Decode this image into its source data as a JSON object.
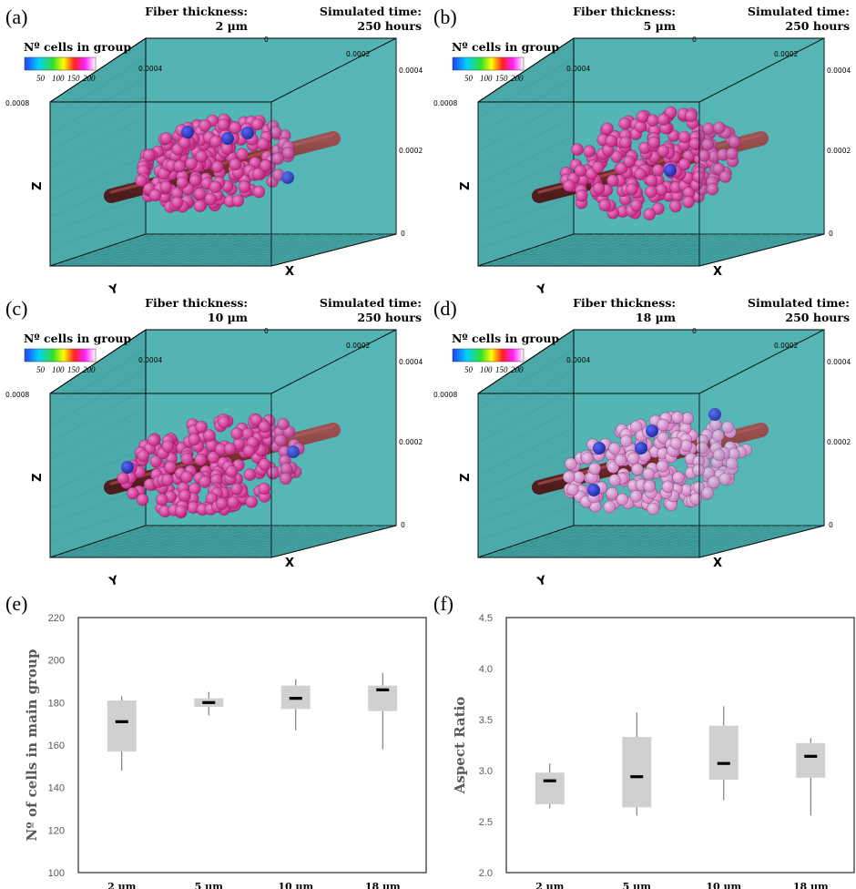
{
  "colors": {
    "box_face": "#5ebdbd",
    "fiber": "#7a1010",
    "cells_dense": "#d4107a",
    "cells_light": "#e070c0",
    "outlier": "#1a1aa0",
    "box_fill": "#d0d0d0",
    "median": "#000000"
  },
  "legend": {
    "title": "Nº cells in group",
    "ticks": [
      "50",
      "100",
      "150",
      "200"
    ]
  },
  "axes": {
    "x": "X",
    "y": "Y",
    "z": "Z",
    "v0008": "0.0008",
    "v0004": "0.0004",
    "v0002": "0.0002",
    "v0": "0"
  },
  "panels3d": [
    {
      "letter": "(a)",
      "fiber_label": "Fiber thickness:",
      "fiber_value": "2 µm",
      "time_label": "Simulated time:",
      "time_value": "250 hours"
    },
    {
      "letter": "(b)",
      "fiber_label": "Fiber thickness:",
      "fiber_value": "5 µm",
      "time_label": "Simulated time:",
      "time_value": "250 hours"
    },
    {
      "letter": "(c)",
      "fiber_label": "Fiber thickness:",
      "fiber_value": "10 µm",
      "time_label": "Simulated time:",
      "time_value": "250 hours"
    },
    {
      "letter": "(d)",
      "fiber_label": "Fiber thickness:",
      "fiber_value": "18 µm",
      "time_label": "Simulated time:",
      "time_value": "250 hours"
    }
  ],
  "chart_data": [
    {
      "letter": "(e)",
      "type": "box",
      "categories": [
        "2 µm",
        "5 µm",
        "10 µm",
        "18 µm"
      ],
      "ylabel": "Nº of cells in main group",
      "ylim": [
        100,
        220
      ],
      "yticks": [
        100,
        120,
        140,
        160,
        180,
        200,
        220
      ],
      "boxes": [
        {
          "min": 148,
          "q1": 157,
          "median": 171,
          "q3": 181,
          "max": 183
        },
        {
          "min": 174,
          "q1": 178,
          "median": 180,
          "q3": 182,
          "max": 185
        },
        {
          "min": 167,
          "q1": 177,
          "median": 182,
          "q3": 188,
          "max": 191
        },
        {
          "min": 158,
          "q1": 176,
          "median": 186,
          "q3": 188,
          "max": 194
        }
      ]
    },
    {
      "letter": "(f)",
      "type": "box",
      "categories": [
        "2 µm",
        "5 µm",
        "10 µm",
        "18 µm"
      ],
      "ylabel": "Aspect Ratio",
      "ylim": [
        2.0,
        4.5
      ],
      "yticks": [
        "2.0",
        "2.5",
        "3.0",
        "3.5",
        "4.0",
        "4.5"
      ],
      "boxes": [
        {
          "min": 2.63,
          "q1": 2.67,
          "median": 2.9,
          "q3": 2.98,
          "max": 3.07
        },
        {
          "min": 2.56,
          "q1": 2.64,
          "median": 2.94,
          "q3": 3.33,
          "max": 3.57
        },
        {
          "min": 2.71,
          "q1": 2.91,
          "median": 3.07,
          "q3": 3.44,
          "max": 3.63
        },
        {
          "min": 2.56,
          "q1": 2.93,
          "median": 3.14,
          "q3": 3.27,
          "max": 3.32
        }
      ]
    }
  ]
}
